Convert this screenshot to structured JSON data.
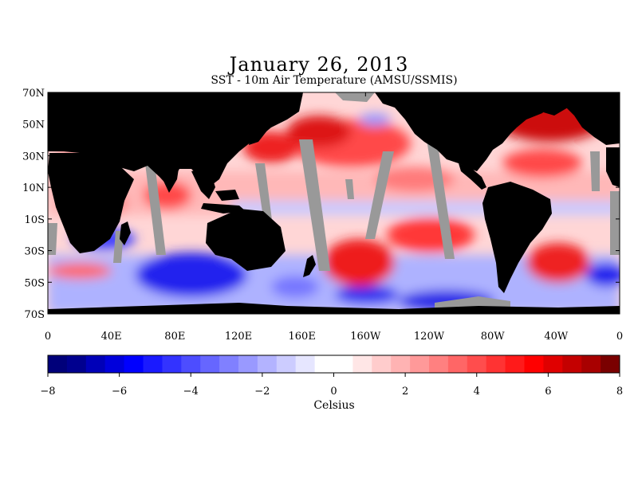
{
  "title": "January 26, 2013",
  "subtitle": "SST - 10m Air Temperature (AMSU/SSMIS)",
  "map": {
    "lat_labels": [
      "70N",
      "50N",
      "30N",
      "10N",
      "10S",
      "30S",
      "50S",
      "70S"
    ],
    "lon_labels": [
      "0",
      "40E",
      "80E",
      "120E",
      "160E",
      "160W",
      "120W",
      "80W",
      "40W",
      "0"
    ]
  },
  "colorbar": {
    "label": "Celsius",
    "tick_labels": [
      "−8",
      "−6",
      "−4",
      "−2",
      "0",
      "2",
      "4",
      "6",
      "8"
    ],
    "range": [
      -8,
      8
    ],
    "colors": [
      "#00007a",
      "#00008f",
      "#0000b8",
      "#0000dc",
      "#0000ff",
      "#1a1aff",
      "#3333ff",
      "#4d4dff",
      "#6666ff",
      "#8080ff",
      "#9999ff",
      "#b3b3ff",
      "#ccccff",
      "#e6e6ff",
      "#ffffff",
      "#ffffff",
      "#ffe6e6",
      "#ffcccc",
      "#ffb3b3",
      "#ff9999",
      "#ff8080",
      "#ff6666",
      "#ff4d4d",
      "#ff3333",
      "#ff1a1a",
      "#ff0000",
      "#e00000",
      "#c40000",
      "#a80000",
      "#7a0000"
    ]
  },
  "colors": {
    "land": "#000000",
    "no_data": "#999999",
    "warm": "#ff0000",
    "cold": "#0000ff"
  }
}
